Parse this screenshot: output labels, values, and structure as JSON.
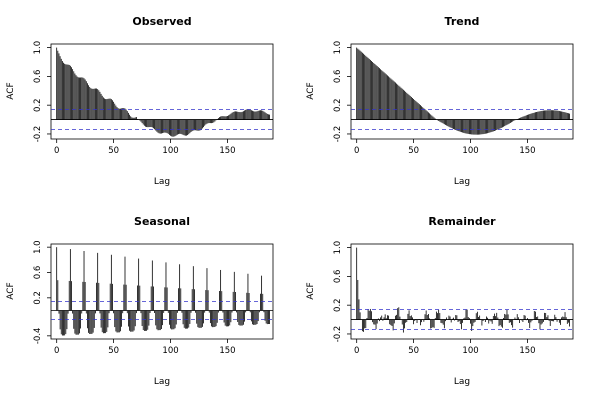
{
  "chart_data": [
    {
      "type": "bar",
      "title": "Observed",
      "xlabel": "Lag",
      "ylabel": "ACF",
      "xlim": [
        -5,
        190
      ],
      "ylim": [
        -0.27,
        1.05
      ],
      "x_ticks": [
        0,
        50,
        100,
        150
      ],
      "y_ticks": [
        -0.2,
        0.2,
        0.6,
        1.0
      ],
      "y_tick_labels": [
        "-0.2",
        "0.2",
        "0.6",
        "1.0"
      ],
      "confidence_band": [
        -0.14,
        0.14
      ],
      "pattern": "observed",
      "max_lag": 187
    },
    {
      "type": "bar",
      "title": "Trend",
      "xlabel": "Lag",
      "ylabel": "ACF",
      "xlim": [
        -5,
        190
      ],
      "ylim": [
        -0.27,
        1.05
      ],
      "x_ticks": [
        0,
        50,
        100,
        150
      ],
      "y_ticks": [
        -0.2,
        0.2,
        0.6,
        1.0
      ],
      "y_tick_labels": [
        "-0.2",
        "0.2",
        "0.6",
        "1.0"
      ],
      "confidence_band": [
        -0.14,
        0.14
      ],
      "pattern": "trend",
      "max_lag": 187
    },
    {
      "type": "bar",
      "title": "Seasonal",
      "xlabel": "Lag",
      "ylabel": "ACF",
      "xlim": [
        -5,
        190
      ],
      "ylim": [
        -0.45,
        1.05
      ],
      "x_ticks": [
        0,
        50,
        100,
        150
      ],
      "y_ticks": [
        -0.4,
        0.2,
        0.6,
        1.0
      ],
      "y_tick_labels": [
        "-0.4",
        "0.2",
        "0.6",
        "1.0"
      ],
      "confidence_band": [
        -0.14,
        0.14
      ],
      "pattern": "seasonal",
      "max_lag": 187
    },
    {
      "type": "bar",
      "title": "Remainder",
      "xlabel": "Lag",
      "ylabel": "ACF",
      "xlim": [
        -5,
        190
      ],
      "ylim": [
        -0.27,
        1.05
      ],
      "x_ticks": [
        0,
        50,
        100,
        150
      ],
      "y_ticks": [
        -0.2,
        0.2,
        0.6,
        1.0
      ],
      "y_tick_labels": [
        "-0.2",
        "0.2",
        "0.6",
        "1.0"
      ],
      "confidence_band": [
        -0.14,
        0.14
      ],
      "pattern": "remainder",
      "max_lag": 187
    }
  ],
  "colors": {
    "bars": "#000000",
    "confidence_band": "#3333cc",
    "zero_line": "#000000"
  }
}
